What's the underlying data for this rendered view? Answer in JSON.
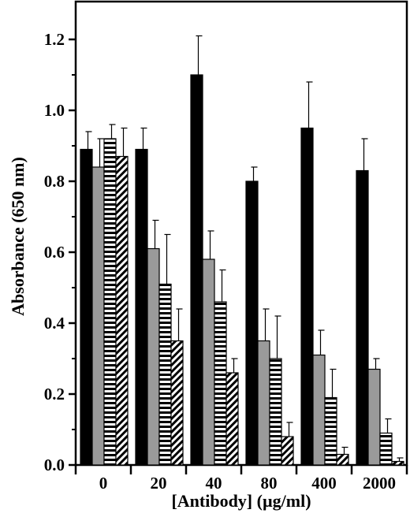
{
  "chart_data": {
    "type": "bar",
    "title": "",
    "xlabel": "[Antibody] (µg/ml)",
    "ylabel": "Absorbance (650 nm)",
    "ylim": [
      0,
      1.2
    ],
    "yticks": [
      "0.0",
      "0.2",
      "0.4",
      "0.6",
      "0.8",
      "1.0",
      "1.2"
    ],
    "categories": [
      "0",
      "20",
      "40",
      "80",
      "400",
      "2000"
    ],
    "legend": "none",
    "grid": false,
    "series": [
      {
        "pattern": "solid-black",
        "color": "#000000",
        "values": [
          0.89,
          0.89,
          1.1,
          0.8,
          0.95,
          0.83
        ],
        "errors": [
          0.05,
          0.06,
          0.11,
          0.04,
          0.13,
          0.09
        ]
      },
      {
        "pattern": "solid-gray",
        "color": "#9a9a9a",
        "values": [
          0.84,
          0.61,
          0.58,
          0.35,
          0.31,
          0.27
        ],
        "errors": [
          0.08,
          0.08,
          0.08,
          0.09,
          0.07,
          0.03
        ]
      },
      {
        "pattern": "horizontal-stripes",
        "color": "#000000",
        "values": [
          0.92,
          0.51,
          0.46,
          0.3,
          0.19,
          0.09
        ],
        "errors": [
          0.04,
          0.14,
          0.09,
          0.12,
          0.08,
          0.04
        ]
      },
      {
        "pattern": "diagonal-hatch",
        "color": "#000000",
        "values": [
          0.87,
          0.35,
          0.26,
          0.08,
          0.03,
          0.01
        ],
        "errors": [
          0.08,
          0.09,
          0.04,
          0.04,
          0.02,
          0.01
        ]
      }
    ]
  }
}
